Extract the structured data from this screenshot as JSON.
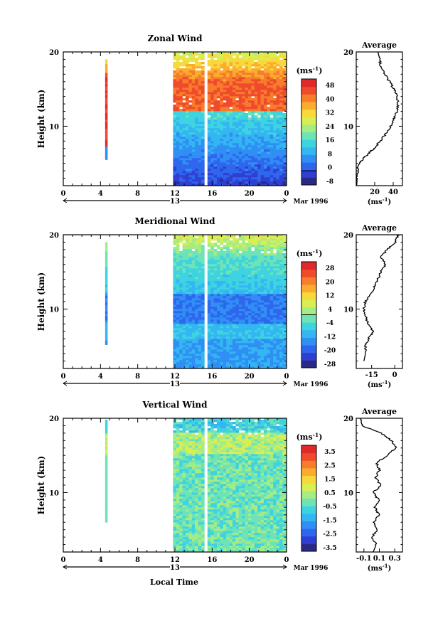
{
  "figure": {
    "date_label": "Mar 1996",
    "xlabel": "Local Time",
    "ylabel": "Height (km)",
    "unit_label": "(ms⁻¹)"
  },
  "chart_data": [
    {
      "type": "heatmap",
      "title": "Zonal Wind",
      "xlabel": "Local Time",
      "ylabel": "Height (km)",
      "x_ticks": [
        "0",
        "4",
        "8",
        "12",
        "16",
        "20",
        "0"
      ],
      "y_ticks": [
        "10",
        "20"
      ],
      "ylim": [
        2,
        20
      ],
      "day_marker": "13",
      "colorbar_ticks": [
        "48",
        "40",
        "32",
        "24",
        "16",
        "8",
        "0",
        "-8"
      ],
      "colorbar_range": [
        -8,
        52
      ],
      "palette": [
        "#2a2a85",
        "#2e3fd2",
        "#2e66ee",
        "#2f8ff4",
        "#33b6f2",
        "#3ed3e0",
        "#6ee3b6",
        "#a6ec84",
        "#d8ee53",
        "#f8d83a",
        "#fbac2e",
        "#f77c2b",
        "#ef4a2c",
        "#e02a2a"
      ],
      "profile": {
        "title": "Average",
        "x_ticks": [
          "20",
          "40"
        ],
        "xlim": [
          0,
          50
        ],
        "y_ticks": [
          "10",
          "20"
        ],
        "xlabel": "(ms⁻¹)",
        "points": [
          [
            0.5,
            2
          ],
          [
            1,
            3
          ],
          [
            1.5,
            4
          ],
          [
            2,
            4.8
          ],
          [
            6,
            5.4
          ],
          [
            12,
            6.2
          ],
          [
            19,
            7
          ],
          [
            26,
            8
          ],
          [
            32,
            9
          ],
          [
            37,
            10
          ],
          [
            41,
            11
          ],
          [
            44,
            12
          ],
          [
            45,
            13
          ],
          [
            44,
            14
          ],
          [
            41,
            15
          ],
          [
            36,
            16
          ],
          [
            31,
            17
          ],
          [
            27,
            18
          ],
          [
            25,
            19
          ],
          [
            24,
            20
          ]
        ]
      }
    },
    {
      "type": "heatmap",
      "title": "Meridional Wind",
      "xlabel": "Local Time",
      "ylabel": "Height (km)",
      "x_ticks": [
        "0",
        "4",
        "8",
        "12",
        "16",
        "20",
        "0"
      ],
      "y_ticks": [
        "10",
        "20"
      ],
      "ylim": [
        2,
        20
      ],
      "day_marker": "13",
      "colorbar_ticks": [
        "28",
        "20",
        "12",
        "4",
        "-4",
        "-12",
        "-20",
        "-28"
      ],
      "colorbar_range": [
        -32,
        32
      ],
      "palette": [
        "#2a2a85",
        "#2e3fd2",
        "#2e66ee",
        "#2f8ff4",
        "#33b6f2",
        "#3ed3e0",
        "#6ee3b6",
        "#a6ec84",
        "#d8ee53",
        "#f8d83a",
        "#fbac2e",
        "#f77c2b",
        "#ef4a2c",
        "#e02a2a"
      ],
      "profile": {
        "title": "Average",
        "x_ticks": [
          "-15",
          "0"
        ],
        "xlim": [
          -25,
          5
        ],
        "y_ticks": [
          "10",
          "20"
        ],
        "xlabel": "(ms⁻¹)",
        "points": [
          [
            -20,
            3
          ],
          [
            -19,
            4
          ],
          [
            -19,
            5
          ],
          [
            -17,
            6
          ],
          [
            -14,
            7
          ],
          [
            -17,
            8
          ],
          [
            -19,
            9
          ],
          [
            -20,
            10
          ],
          [
            -19,
            11
          ],
          [
            -16,
            12
          ],
          [
            -13,
            13
          ],
          [
            -11,
            14
          ],
          [
            -9,
            15
          ],
          [
            -6,
            16
          ],
          [
            -9,
            17
          ],
          [
            -5,
            18
          ],
          [
            1,
            19
          ],
          [
            1,
            19.6
          ],
          [
            3,
            20
          ]
        ]
      }
    },
    {
      "type": "heatmap",
      "title": "Vertical Wind",
      "xlabel": "Local Time",
      "ylabel": "Height (km)",
      "x_ticks": [
        "0",
        "4",
        "8",
        "12",
        "16",
        "20",
        "0"
      ],
      "y_ticks": [
        "10",
        "20"
      ],
      "ylim": [
        2,
        20
      ],
      "day_marker": "13",
      "colorbar_ticks": [
        "3.5",
        "2.5",
        "1.5",
        "0.5",
        "-0.5",
        "-1.5",
        "-2.5",
        "-3.5"
      ],
      "colorbar_range": [
        -4,
        4
      ],
      "palette": [
        "#2a2a85",
        "#2e3fd2",
        "#2e66ee",
        "#2f8ff4",
        "#33b6f2",
        "#3ed3e0",
        "#6ee3b6",
        "#a6ec84",
        "#d8ee53",
        "#f8d83a",
        "#fbac2e",
        "#f77c2b",
        "#ef4a2c",
        "#e02a2a"
      ],
      "profile": {
        "title": "Average",
        "x_ticks": [
          "-0.1",
          "0.1",
          "0.3"
        ],
        "xlim": [
          -0.2,
          0.4
        ],
        "y_ticks": [
          "10",
          "20"
        ],
        "xlabel": "(ms⁻¹)",
        "points": [
          [
            0.02,
            2
          ],
          [
            0.06,
            3
          ],
          [
            0.0,
            4
          ],
          [
            0.08,
            5
          ],
          [
            0.03,
            6
          ],
          [
            0.1,
            7
          ],
          [
            0.04,
            8
          ],
          [
            0.09,
            9
          ],
          [
            0.02,
            10
          ],
          [
            0.12,
            11
          ],
          [
            0.05,
            12
          ],
          [
            0.1,
            13
          ],
          [
            0.06,
            14
          ],
          [
            0.2,
            15
          ],
          [
            0.32,
            16
          ],
          [
            0.26,
            17
          ],
          [
            0.12,
            18
          ],
          [
            -0.12,
            19
          ],
          [
            -0.15,
            20
          ]
        ]
      }
    }
  ]
}
